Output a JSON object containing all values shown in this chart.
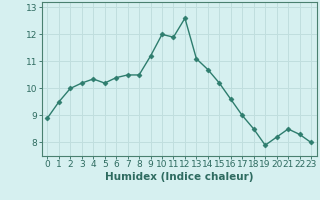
{
  "x": [
    0,
    1,
    2,
    3,
    4,
    5,
    6,
    7,
    8,
    9,
    10,
    11,
    12,
    13,
    14,
    15,
    16,
    17,
    18,
    19,
    20,
    21,
    22,
    23
  ],
  "y": [
    8.9,
    9.5,
    10.0,
    10.2,
    10.35,
    10.2,
    10.4,
    10.5,
    10.5,
    11.2,
    12.0,
    11.9,
    12.6,
    11.1,
    10.7,
    10.2,
    9.6,
    9.0,
    8.5,
    7.9,
    8.2,
    8.5,
    8.3,
    8.0
  ],
  "line_color": "#2e7d6e",
  "marker": "D",
  "marker_size": 2.5,
  "bg_color": "#d6f0f0",
  "grid_color": "#c0dede",
  "xlabel": "Humidex (Indice chaleur)",
  "ylim": [
    7.5,
    13.2
  ],
  "xlim": [
    -0.5,
    23.5
  ],
  "yticks": [
    8,
    9,
    10,
    11,
    12,
    13
  ],
  "xticks": [
    0,
    1,
    2,
    3,
    4,
    5,
    6,
    7,
    8,
    9,
    10,
    11,
    12,
    13,
    14,
    15,
    16,
    17,
    18,
    19,
    20,
    21,
    22,
    23
  ],
  "text_color": "#2e6b60",
  "axis_color": "#4a8070",
  "label_fontsize": 7.5,
  "tick_fontsize": 6.5
}
